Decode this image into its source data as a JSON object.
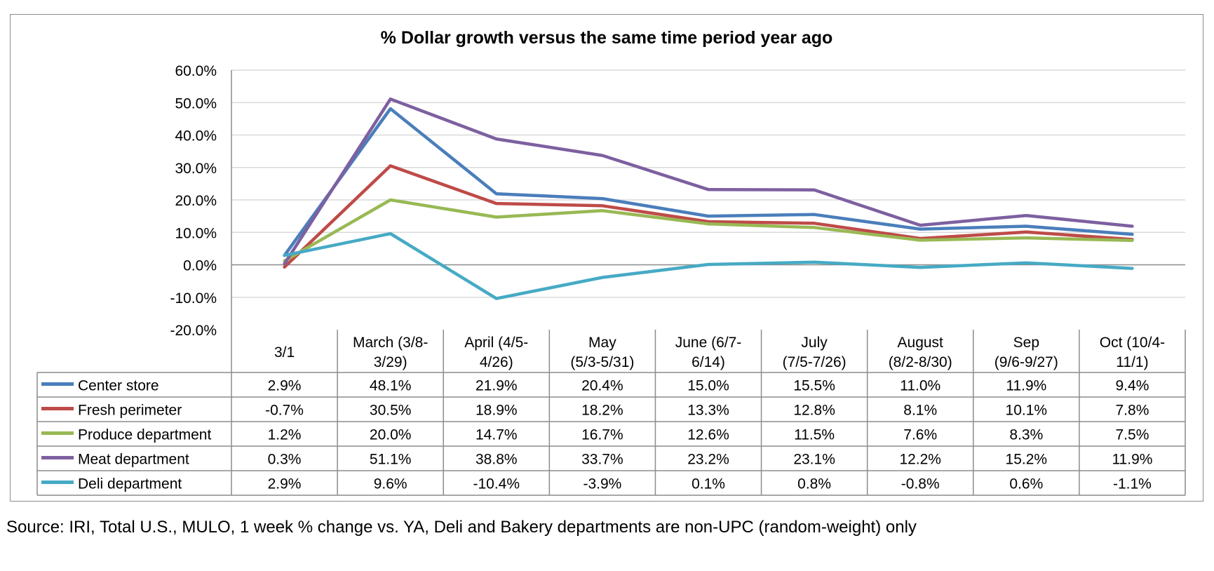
{
  "source_note": "Source: IRI, Total U.S., MULO, 1 week % change vs. YA, Deli and Bakery departments are non-UPC (random-weight) only",
  "chart_data": {
    "type": "line",
    "title": "% Dollar growth versus the same time period year ago",
    "xlabel": "",
    "ylabel": "",
    "ylim": [
      -20,
      60
    ],
    "y_ticks": [
      "60.0%",
      "50.0%",
      "40.0%",
      "30.0%",
      "20.0%",
      "10.0%",
      "0.0%",
      "-10.0%",
      "-20.0%"
    ],
    "grid": true,
    "legend": "data-table",
    "categories": [
      [
        "3/1"
      ],
      [
        "March (3/8-",
        "3/29)"
      ],
      [
        "April (4/5-",
        "4/26)"
      ],
      [
        "May",
        "(5/3-5/31)"
      ],
      [
        "June (6/7-",
        "6/14)"
      ],
      [
        "July",
        "(7/5-7/26)"
      ],
      [
        "August",
        "(8/2-8/30)"
      ],
      [
        "Sep",
        "(9/6-9/27)"
      ],
      [
        "Oct (10/4-",
        "11/1)"
      ]
    ],
    "series": [
      {
        "name": "Center store",
        "color": "#4a7ebb",
        "values": [
          2.9,
          48.1,
          21.9,
          20.4,
          15.0,
          15.5,
          11.0,
          11.9,
          9.4
        ],
        "labels": [
          "2.9%",
          "48.1%",
          "21.9%",
          "20.4%",
          "15.0%",
          "15.5%",
          "11.0%",
          "11.9%",
          "9.4%"
        ]
      },
      {
        "name": "Fresh perimeter",
        "color": "#be4b48",
        "values": [
          -0.7,
          30.5,
          18.9,
          18.2,
          13.3,
          12.8,
          8.1,
          10.1,
          7.8
        ],
        "labels": [
          "-0.7%",
          "30.5%",
          "18.9%",
          "18.2%",
          "13.3%",
          "12.8%",
          "8.1%",
          "10.1%",
          "7.8%"
        ]
      },
      {
        "name": "Produce department",
        "color": "#98b954",
        "values": [
          1.2,
          20.0,
          14.7,
          16.7,
          12.6,
          11.5,
          7.6,
          8.3,
          7.5
        ],
        "labels": [
          "1.2%",
          "20.0%",
          "14.7%",
          "16.7%",
          "12.6%",
          "11.5%",
          "7.6%",
          "8.3%",
          "7.5%"
        ]
      },
      {
        "name": "Meat department",
        "color": "#7d60a0",
        "values": [
          0.3,
          51.1,
          38.8,
          33.7,
          23.2,
          23.1,
          12.2,
          15.2,
          11.9
        ],
        "labels": [
          "0.3%",
          "51.1%",
          "38.8%",
          "33.7%",
          "23.2%",
          "23.1%",
          "12.2%",
          "15.2%",
          "11.9%"
        ]
      },
      {
        "name": "Deli department",
        "color": "#46aac5",
        "values": [
          2.9,
          9.6,
          -10.4,
          -3.9,
          0.1,
          0.8,
          -0.8,
          0.6,
          -1.1
        ],
        "labels": [
          "2.9%",
          "9.6%",
          "-10.4%",
          "-3.9%",
          "0.1%",
          "0.8%",
          "-0.8%",
          "0.6%",
          "-1.1%"
        ]
      }
    ]
  }
}
